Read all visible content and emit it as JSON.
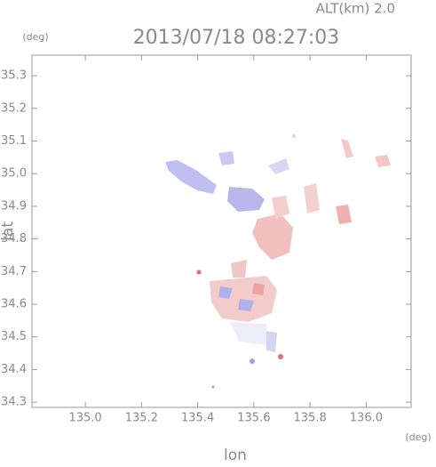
{
  "chart_data": {
    "type": "field",
    "title": "2013/07/18 08:27:03",
    "subtitle": "ALT(km) 2.0",
    "x_label": "lon",
    "y_label": "lat",
    "x_unit": "(deg)",
    "y_unit": "(deg)",
    "xlim": [
      134.81,
      136.16
    ],
    "ylim": [
      34.284,
      35.363
    ],
    "xticks": [
      {
        "value": 135.0,
        "label": "135.0"
      },
      135.2,
      135.4,
      135.6,
      135.8,
      {
        "value": 136.0,
        "label": "136.0"
      }
    ],
    "yticks": [
      34.3,
      34.4,
      34.5,
      34.6,
      34.7,
      34.8,
      34.9,
      {
        "value": 35.0,
        "label": "35.0"
      },
      35.1,
      35.2,
      35.3
    ],
    "grid": false
  }
}
